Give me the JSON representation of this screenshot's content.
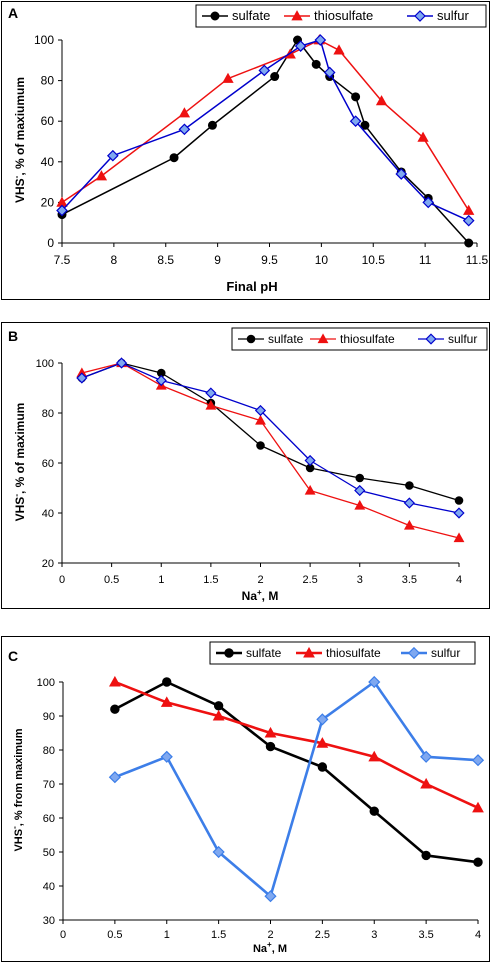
{
  "chart_data": [
    {
      "type": "line",
      "panel_label": "A",
      "xlabel": "Final pH",
      "ylabel_main": "VHS",
      "ylabel_sup": "-",
      "ylabel_rest": ", % of maxiumum",
      "xlim": [
        7.5,
        11.5
      ],
      "ylim": [
        0,
        100
      ],
      "xticks": [
        "7.5",
        "8",
        "8.5",
        "9",
        "9.5",
        "10",
        "10.5",
        "11",
        "11.5"
      ],
      "yticks": [
        "0",
        "20",
        "40",
        "60",
        "80",
        "100"
      ],
      "grid": false,
      "legend_position": "top-right",
      "series": [
        {
          "name": "sulfate",
          "color": "#000000",
          "marker": "circle",
          "x": [
            7.5,
            8.58,
            8.95,
            9.55,
            9.77,
            9.95,
            10.08,
            10.33,
            10.42,
            10.77,
            11.03,
            11.42
          ],
          "y": [
            14,
            42,
            58,
            82,
            100,
            88,
            82,
            72,
            58,
            35,
            22,
            0
          ]
        },
        {
          "name": "thiosulfate",
          "color": "#ee1111",
          "marker": "triangle",
          "x": [
            7.5,
            7.88,
            8.68,
            9.1,
            9.7,
            9.98,
            10.17,
            10.58,
            10.98,
            11.42
          ],
          "y": [
            20,
            33,
            64,
            81,
            93,
            100,
            95,
            70,
            52,
            16
          ]
        },
        {
          "name": "sulfur",
          "color": "#0000cc",
          "marker": "diamond",
          "x": [
            7.5,
            7.99,
            8.68,
            9.45,
            9.8,
            9.99,
            10.08,
            10.33,
            10.77,
            11.03,
            11.42
          ],
          "y": [
            16,
            43,
            56,
            85,
            97,
            100,
            84,
            60,
            34,
            20,
            11
          ]
        }
      ]
    },
    {
      "type": "line",
      "panel_label": "B",
      "xlabel_main": "Na",
      "xlabel_sup": "+",
      "xlabel_rest": ", M",
      "ylabel_main": "VHS",
      "ylabel_sup": "-",
      "ylabel_rest": ", % of maximum",
      "xlim": [
        0,
        4
      ],
      "ylim": [
        20,
        100
      ],
      "xticks": [
        "0",
        "0.5",
        "1",
        "1.5",
        "2",
        "2.5",
        "3",
        "3.5",
        "4"
      ],
      "yticks": [
        "20",
        "40",
        "60",
        "80",
        "100"
      ],
      "grid": false,
      "legend_position": "top-right",
      "series": [
        {
          "name": "sulfate",
          "color": "#000000",
          "marker": "circle",
          "x": [
            0.2,
            0.6,
            1,
            1.5,
            2,
            2.5,
            3,
            3.5,
            4
          ],
          "y": [
            94,
            100,
            96,
            84,
            67,
            58,
            54,
            51,
            45
          ]
        },
        {
          "name": "thiosulfate",
          "color": "#ee1111",
          "marker": "triangle",
          "x": [
            0.2,
            0.6,
            1,
            1.5,
            2,
            2.5,
            3,
            3.5,
            4
          ],
          "y": [
            96,
            100,
            91,
            83,
            77,
            49,
            43,
            35,
            30
          ]
        },
        {
          "name": "sulfur",
          "color": "#0000cc",
          "marker": "diamond",
          "x": [
            0.2,
            0.6,
            1,
            1.5,
            2,
            2.5,
            3,
            3.5,
            4
          ],
          "y": [
            94,
            100,
            93,
            88,
            81,
            61,
            49,
            44,
            40
          ]
        }
      ]
    },
    {
      "type": "line",
      "panel_label": "C",
      "xlabel_main": "Na",
      "xlabel_sup": "+",
      "xlabel_rest": ", M",
      "ylabel_main": "VHS",
      "ylabel_sup": "-",
      "ylabel_rest": ", % from maximum",
      "xlim": [
        0,
        4
      ],
      "ylim": [
        30,
        100
      ],
      "xticks": [
        "0",
        "0.5",
        "1",
        "1.5",
        "2",
        "2.5",
        "3",
        "3.5",
        "4"
      ],
      "yticks": [
        "30",
        "40",
        "50",
        "60",
        "70",
        "80",
        "90",
        "100"
      ],
      "grid": false,
      "legend_position": "top-right",
      "series": [
        {
          "name": "sulfate",
          "color": "#000000",
          "marker": "circle",
          "x": [
            0.5,
            1,
            1.5,
            2,
            2.5,
            3,
            3.5,
            4
          ],
          "y": [
            92,
            100,
            93,
            81,
            75,
            62,
            49,
            47
          ]
        },
        {
          "name": "thiosulfate",
          "color": "#ee1111",
          "marker": "triangle",
          "x": [
            0.5,
            1,
            1.5,
            2,
            2.5,
            3,
            3.5,
            4
          ],
          "y": [
            100,
            94,
            90,
            85,
            82,
            78,
            70,
            63
          ]
        },
        {
          "name": "sulfur",
          "color": "#3d7ee8",
          "marker": "diamond",
          "x": [
            0.5,
            1,
            1.5,
            2,
            2.5,
            3,
            3.5,
            4
          ],
          "y": [
            72,
            78,
            50,
            37,
            89,
            100,
            78,
            77
          ]
        }
      ]
    }
  ]
}
